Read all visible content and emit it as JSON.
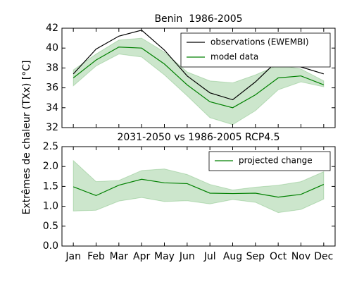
{
  "chart_data": [
    {
      "type": "line",
      "title": "Benin  1986-2005",
      "ylabel": "Extrêmes de chaleur (TXx) [°C]",
      "ylim": [
        32,
        42
      ],
      "yticks": [
        32,
        34,
        36,
        38,
        40,
        42
      ],
      "legend": "upper right",
      "series": [
        {
          "name": "observations (EWEMBI)",
          "color": "#000000",
          "values": [
            37.4,
            39.9,
            41.2,
            41.8,
            39.8,
            37.2,
            35.5,
            34.8,
            36.6,
            38.8,
            38.1,
            37.4
          ]
        },
        {
          "name": "model data",
          "color": "#008000",
          "values": [
            37.0,
            38.8,
            40.1,
            40.0,
            38.4,
            36.3,
            34.6,
            34.0,
            35.3,
            37.0,
            37.2,
            36.3
          ]
        }
      ],
      "band": {
        "color": "#008000",
        "lower": [
          36.2,
          38.2,
          39.4,
          39.1,
          37.3,
          35.2,
          33.0,
          32.3,
          33.7,
          35.8,
          36.6,
          36.1
        ],
        "upper": [
          37.8,
          39.4,
          40.8,
          41.0,
          39.6,
          37.6,
          36.7,
          36.5,
          37.3,
          38.3,
          37.9,
          36.7
        ]
      }
    },
    {
      "type": "line",
      "title": "2031-2050 vs 1986-2005 RCP4.5",
      "categories": [
        "Jan",
        "Feb",
        "Mar",
        "Apr",
        "May",
        "Jun",
        "Jul",
        "Aug",
        "Sep",
        "Oct",
        "Nov",
        "Dec"
      ],
      "ylim": [
        0,
        2.5
      ],
      "yticks": [
        {
          "value": 0,
          "label": "0.0"
        },
        0.5,
        {
          "value": 1,
          "label": "1.0"
        },
        1.5,
        {
          "value": 2,
          "label": "2.0"
        },
        2.5
      ],
      "legend": "upper right",
      "series": [
        {
          "name": "projected change",
          "color": "#008000",
          "values": [
            1.49,
            1.27,
            1.53,
            1.68,
            1.59,
            1.57,
            1.33,
            1.32,
            1.33,
            1.23,
            1.3,
            1.55
          ]
        }
      ],
      "band": {
        "color": "#008000",
        "lower": [
          0.88,
          0.9,
          1.13,
          1.22,
          1.12,
          1.14,
          1.06,
          1.17,
          1.1,
          0.84,
          0.92,
          1.18
        ],
        "upper": [
          2.15,
          1.62,
          1.65,
          1.9,
          1.94,
          1.8,
          1.55,
          1.41,
          1.48,
          1.53,
          1.62,
          1.87
        ]
      }
    }
  ]
}
